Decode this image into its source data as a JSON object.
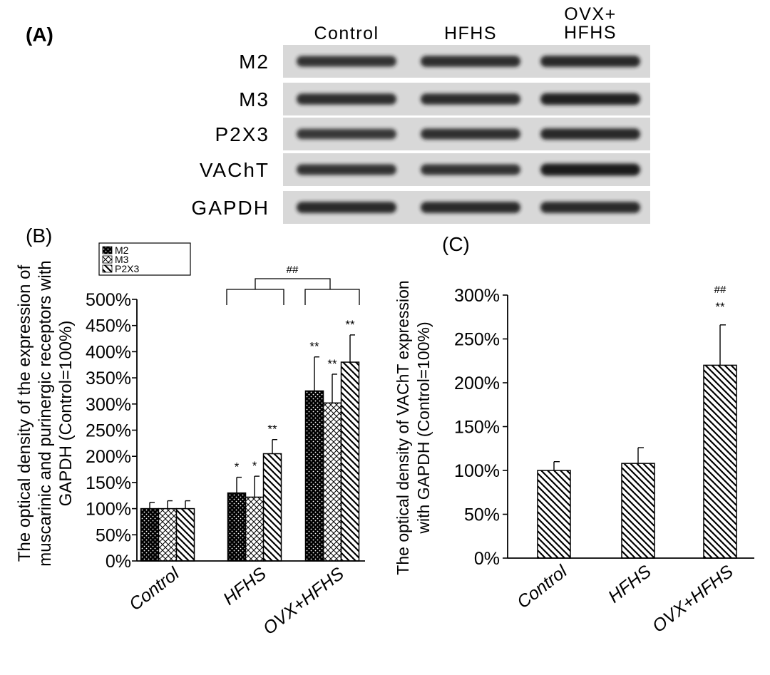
{
  "panels": {
    "a": {
      "label": "(A)",
      "columns": [
        "Control",
        "HFHS",
        "OVX+\nHFHS"
      ],
      "rows": [
        {
          "label": "M2",
          "intensity": [
            0.75,
            0.8,
            0.85
          ]
        },
        {
          "label": "M3",
          "intensity": [
            0.8,
            0.82,
            0.95
          ]
        },
        {
          "label": "P2X3",
          "intensity": [
            0.7,
            0.78,
            0.85
          ]
        },
        {
          "label": "VAChT",
          "intensity": [
            0.75,
            0.75,
            1.0
          ]
        },
        {
          "label": "GAPDH",
          "intensity": [
            0.85,
            0.85,
            0.85
          ]
        }
      ],
      "band_color": "#1a1a1a",
      "blot_background": "#d8d8d8"
    },
    "b": {
      "label": "(B)"
    },
    "c": {
      "label": "(C)"
    }
  },
  "chart_data": [
    {
      "type": "bar",
      "panel": "B",
      "categories": [
        "Control",
        "HFHS",
        "OVX+HFHS"
      ],
      "series": [
        {
          "name": "M2",
          "pattern": "dots-black",
          "values": [
            100,
            130,
            325
          ],
          "errors": [
            12,
            30,
            65
          ],
          "marks": [
            "",
            "*",
            "**"
          ]
        },
        {
          "name": "M3",
          "pattern": "crosshatch",
          "values": [
            100,
            122,
            302
          ],
          "errors": [
            15,
            40,
            55
          ],
          "marks": [
            "",
            "*",
            "**"
          ]
        },
        {
          "name": "P2X3",
          "pattern": "diagonal",
          "values": [
            100,
            205,
            380
          ],
          "errors": [
            15,
            27,
            52
          ],
          "marks": [
            "",
            "**",
            "**"
          ]
        }
      ],
      "ylabel": "The optical density of the expression of\nmuscarinic and purinergic receptors with\nGAPDH (Control=100%)",
      "ylim": [
        0,
        500
      ],
      "yticks": [
        "0%",
        "50%",
        "100%",
        "150%",
        "200%",
        "250%",
        "300%",
        "350%",
        "400%",
        "450%",
        "500%"
      ],
      "bracket": {
        "from": "HFHS",
        "to": "OVX+HFHS",
        "label": "##"
      },
      "legend": "top-left"
    },
    {
      "type": "bar",
      "panel": "C",
      "categories": [
        "Control",
        "HFHS",
        "OVX+HFHS"
      ],
      "series": [
        {
          "pattern": "diagonal",
          "values": [
            100,
            108,
            220
          ],
          "errors": [
            10,
            18,
            46
          ],
          "marks": [
            "",
            "",
            "**"
          ],
          "extra_marks": [
            "",
            "",
            "##"
          ]
        }
      ],
      "ylabel": "The optical density of VAChT expression\nwith GAPDH (Control=100%)",
      "ylim": [
        0,
        300
      ],
      "yticks": [
        "0%",
        "50%",
        "100%",
        "150%",
        "200%",
        "250%",
        "300%"
      ]
    }
  ]
}
